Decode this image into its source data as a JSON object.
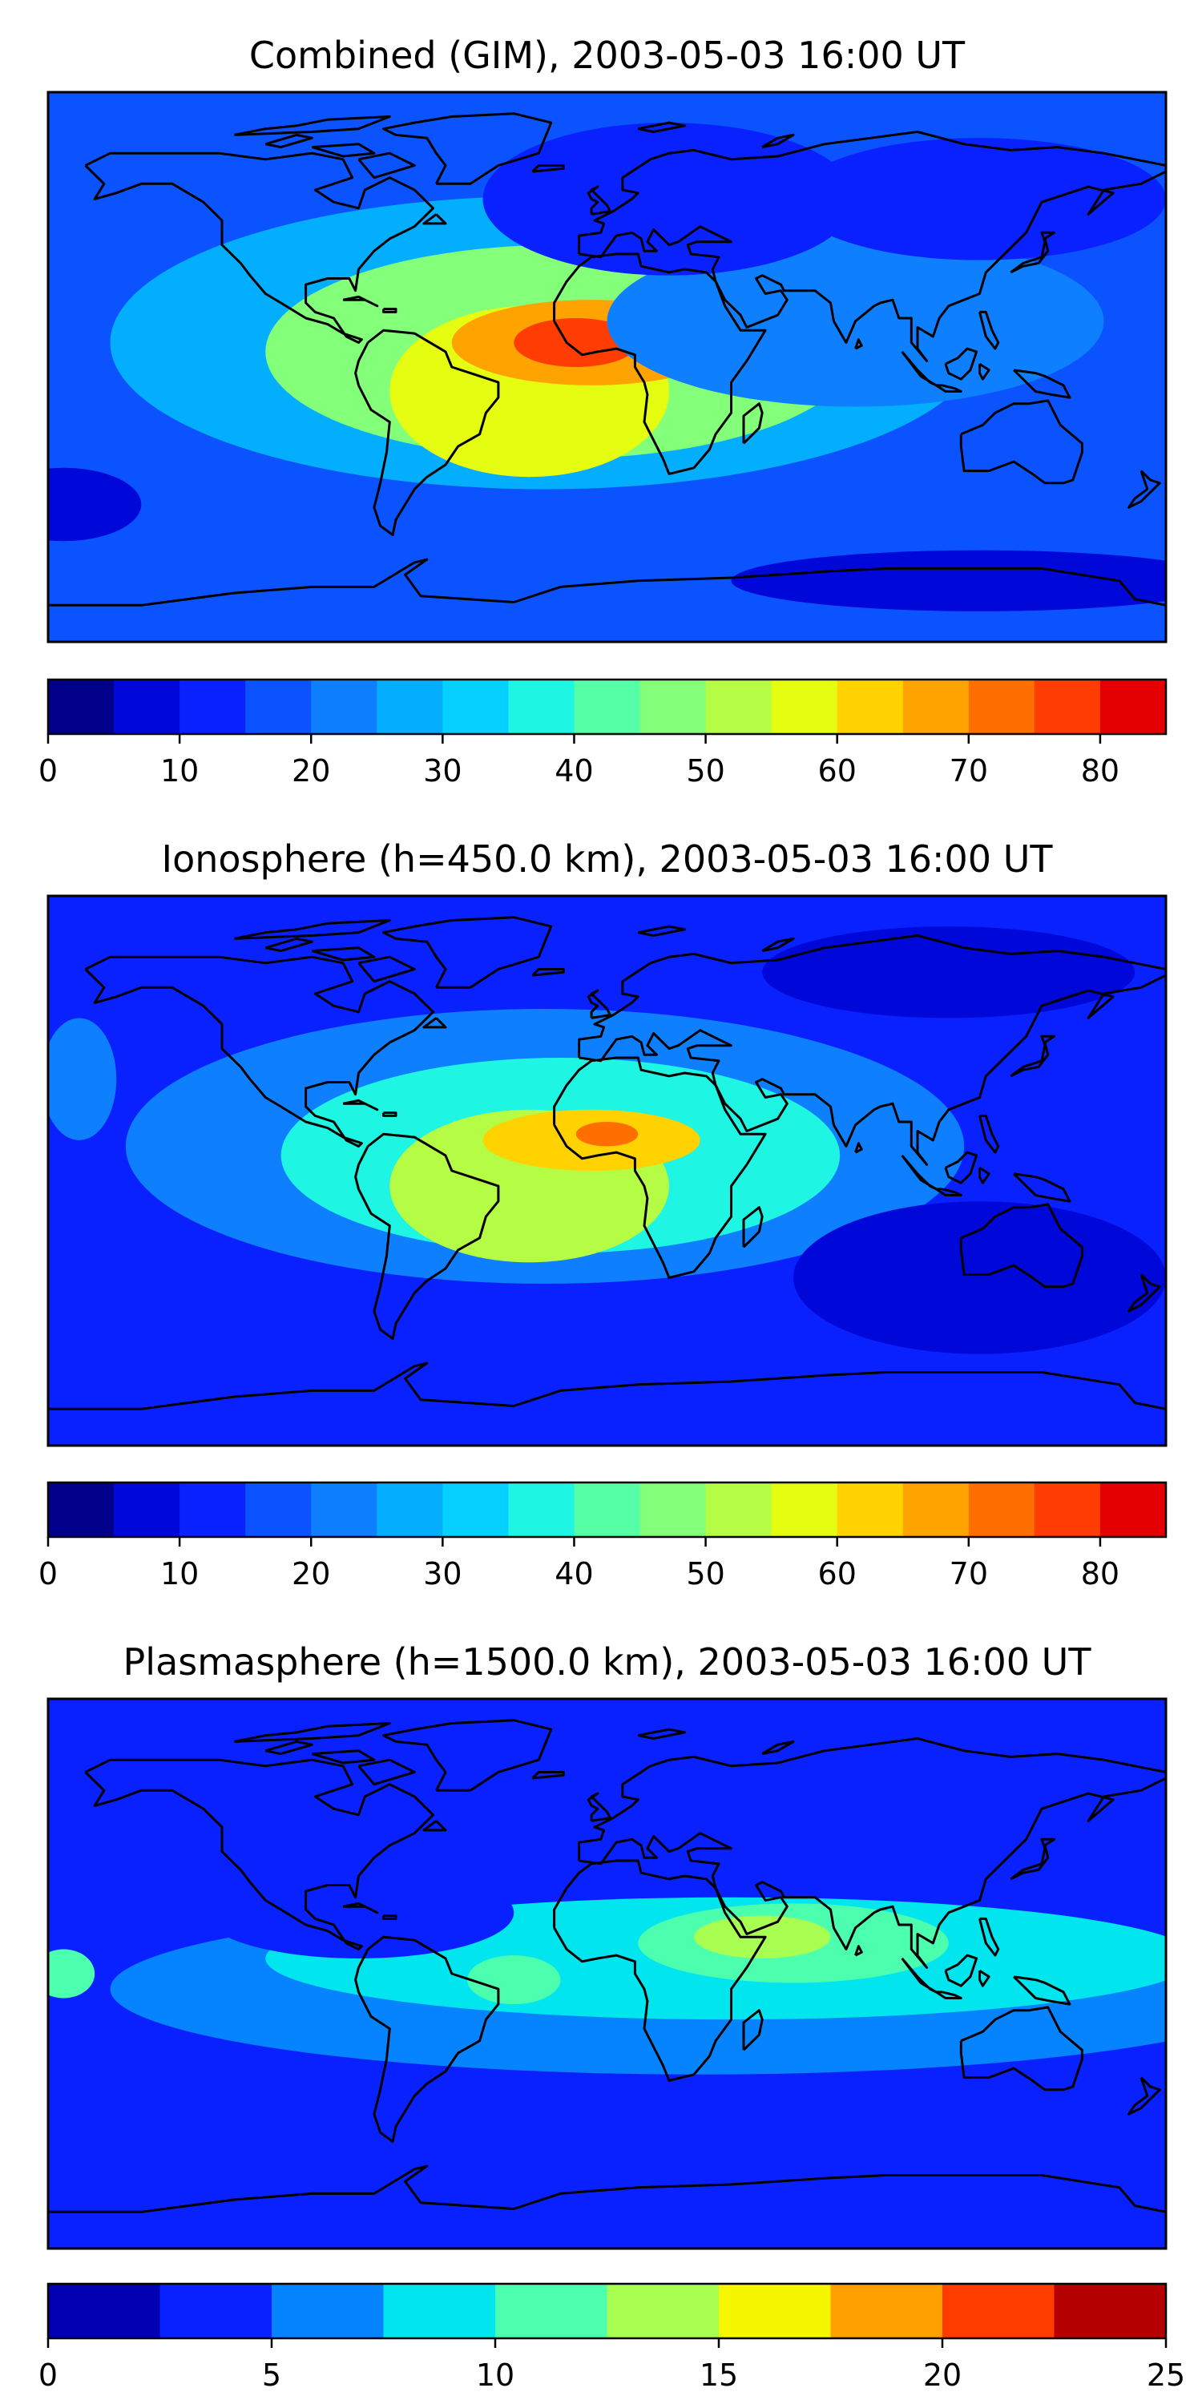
{
  "figure": {
    "panels": [
      {
        "id": "combined",
        "title": "Combined (GIM), 2003-05-03 16:00 UT",
        "colorbar": {
          "levels": [
            0,
            5,
            10,
            15,
            20,
            25,
            30,
            35,
            40,
            45,
            50,
            55,
            60,
            65,
            70,
            75,
            80,
            85
          ],
          "colors": [
            "#00008b",
            "#0008d9",
            "#0a21ff",
            "#0b53ff",
            "#0e7fff",
            "#03aefe",
            "#05d0ff",
            "#1ef5e2",
            "#54ffa6",
            "#83ff7a",
            "#b5fd44",
            "#e4fd11",
            "#ffd200",
            "#ffa300",
            "#ff6f00",
            "#ff3c01",
            "#e50000",
            "#a20000"
          ],
          "tick_values": [
            0,
            10,
            20,
            30,
            40,
            50,
            60,
            70,
            80
          ],
          "tick_labels": [
            "0",
            "10",
            "20",
            "30",
            "40",
            "50",
            "60",
            "70",
            "80"
          ]
        },
        "map_fill": {
          "background_level": 15,
          "blobs": [
            {
              "lon": -20,
              "lat": 8,
              "rlon": 140,
              "rlat": 48,
              "level": 28
            },
            {
              "lon": -15,
              "lat": 5,
              "rlon": 95,
              "rlat": 35,
              "level": 45
            },
            {
              "lon": -25,
              "lat": -8,
              "rlon": 45,
              "rlat": 28,
              "level": 55
            },
            {
              "lon": -5,
              "lat": 8,
              "rlon": 45,
              "rlat": 14,
              "level": 68
            },
            {
              "lon": -10,
              "lat": 8,
              "rlon": 20,
              "rlat": 8,
              "level": 78
            },
            {
              "lon": 80,
              "lat": 15,
              "rlon": 80,
              "rlat": 28,
              "level": 23
            },
            {
              "lon": 20,
              "lat": 55,
              "rlon": 60,
              "rlat": 25,
              "level": 10
            },
            {
              "lon": 120,
              "lat": 55,
              "rlon": 60,
              "rlat": 20,
              "level": 12
            },
            {
              "lon": -175,
              "lat": -45,
              "rlon": 25,
              "rlat": 12,
              "level": 7
            },
            {
              "lon": 120,
              "lat": -70,
              "rlon": 80,
              "rlat": 10,
              "level": 7
            }
          ]
        }
      },
      {
        "id": "ionosphere",
        "title": "Ionosphere  (h=450.0 km), 2003-05-03 16:00 UT",
        "colorbar": {
          "levels": [
            0,
            5,
            10,
            15,
            20,
            25,
            30,
            35,
            40,
            45,
            50,
            55,
            60,
            65,
            70,
            75,
            80,
            85
          ],
          "colors": [
            "#00008b",
            "#0008d9",
            "#0a21ff",
            "#0b53ff",
            "#0e7fff",
            "#03aefe",
            "#05d0ff",
            "#1ef5e2",
            "#54ffa6",
            "#83ff7a",
            "#b5fd44",
            "#e4fd11",
            "#ffd200",
            "#ffa300",
            "#ff6f00",
            "#ff3c01",
            "#e50000",
            "#a20000"
          ],
          "tick_values": [
            0,
            10,
            20,
            30,
            40,
            50,
            60,
            70,
            80
          ],
          "tick_labels": [
            "0",
            "10",
            "20",
            "30",
            "40",
            "50",
            "60",
            "70",
            "80"
          ]
        },
        "map_fill": {
          "background_level": 12,
          "blobs": [
            {
              "lon": -20,
              "lat": 8,
              "rlon": 135,
              "rlat": 45,
              "level": 22
            },
            {
              "lon": -15,
              "lat": 5,
              "rlon": 90,
              "rlat": 32,
              "level": 38
            },
            {
              "lon": -25,
              "lat": -5,
              "rlon": 45,
              "rlat": 25,
              "level": 50
            },
            {
              "lon": -5,
              "lat": 10,
              "rlon": 35,
              "rlat": 10,
              "level": 62
            },
            {
              "lon": 0,
              "lat": 12,
              "rlon": 10,
              "rlat": 4,
              "level": 72
            },
            {
              "lon": 120,
              "lat": -35,
              "rlon": 60,
              "rlat": 25,
              "level": 7
            },
            {
              "lon": 110,
              "lat": 65,
              "rlon": 60,
              "rlat": 15,
              "level": 7
            },
            {
              "lon": -170,
              "lat": 30,
              "rlon": 12,
              "rlat": 20,
              "level": 20
            }
          ]
        }
      },
      {
        "id": "plasmasphere",
        "title": "Plasmasphere (h=1500.0 km), 2003-05-03 16:00 UT",
        "colorbar": {
          "levels": [
            0,
            2.5,
            5,
            7.5,
            10,
            12.5,
            15,
            17.5,
            20,
            22.5,
            25
          ],
          "colors": [
            "#0000b3",
            "#0a21ff",
            "#0683ff",
            "#00e5ee",
            "#4cffaf",
            "#a8ff51",
            "#f5f600",
            "#ff9f00",
            "#ff3c00",
            "#b40000"
          ],
          "tick_values": [
            0,
            5,
            10,
            15,
            20,
            25
          ],
          "tick_labels": [
            "0",
            "5",
            "10",
            "15",
            "20",
            "25"
          ]
        },
        "map_fill": {
          "background_level": 3,
          "blobs": [
            {
              "lon": 30,
              "lat": -5,
              "rlon": 190,
              "rlat": 28,
              "level": 5.5
            },
            {
              "lon": 40,
              "lat": 5,
              "rlon": 150,
              "rlat": 20,
              "level": 8
            },
            {
              "lon": 60,
              "lat": 10,
              "rlon": 50,
              "rlat": 13,
              "level": 11
            },
            {
              "lon": 50,
              "lat": 12,
              "rlon": 22,
              "rlat": 7,
              "level": 13
            },
            {
              "lon": -30,
              "lat": -2,
              "rlon": 15,
              "rlat": 8,
              "level": 11
            },
            {
              "lon": -175,
              "lat": 0,
              "rlon": 10,
              "rlat": 8,
              "level": 11
            },
            {
              "lon": -80,
              "lat": 20,
              "rlon": 50,
              "rlat": 15,
              "level": 4
            }
          ]
        }
      }
    ]
  }
}
